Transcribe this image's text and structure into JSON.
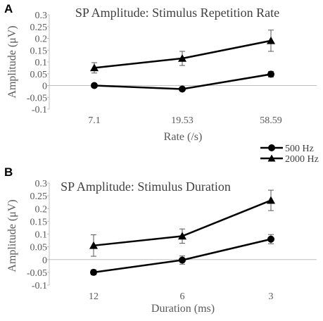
{
  "chart_data": [
    {
      "type": "line",
      "panel": "A",
      "title": "SP Amplitude: Stimulus Repetition Rate",
      "xlabel": "Rate (/s)",
      "ylabel": "Amplitude (μV)",
      "categories": [
        "7.1",
        "19.53",
        "58.59"
      ],
      "ylim": [
        -0.1,
        0.3
      ],
      "yticks": [
        "0.3",
        "0.25",
        "0.2",
        "0.15",
        "0.1",
        "0.05",
        "0",
        "-0.05",
        "-0.1"
      ],
      "series": [
        {
          "name": "500 Hz",
          "marker": "circle",
          "values": [
            0.0,
            -0.015,
            0.048
          ],
          "errors": [
            0.005,
            0.008,
            0.012
          ]
        },
        {
          "name": "2000 Hz",
          "marker": "triangle",
          "values": [
            0.075,
            0.115,
            0.19
          ],
          "errors": [
            0.022,
            0.03,
            0.045
          ]
        }
      ],
      "grid": false,
      "legend": "right"
    },
    {
      "type": "line",
      "panel": "B",
      "title": "SP Amplitude: Stimulus Duration",
      "xlabel": "Duration (ms)",
      "ylabel": "Amplitude (μV)",
      "categories": [
        "12",
        "6",
        "3"
      ],
      "ylim": [
        -0.1,
        0.3
      ],
      "yticks": [
        "0.3",
        "0.25",
        "0.2",
        "0.15",
        "0.1",
        "0.05",
        "0",
        "-0.05",
        "-0.1"
      ],
      "series": [
        {
          "name": "500 Hz",
          "marker": "circle",
          "values": [
            -0.05,
            -0.002,
            0.08
          ],
          "errors": [
            0.01,
            0.016,
            0.018
          ]
        },
        {
          "name": "2000 Hz",
          "marker": "triangle",
          "values": [
            0.055,
            0.092,
            0.232
          ],
          "errors": [
            0.042,
            0.028,
            0.04
          ]
        }
      ],
      "grid": false,
      "legend": "none"
    }
  ],
  "legend": {
    "items": [
      {
        "name": "500 Hz",
        "marker": "circle"
      },
      {
        "name": "2000 Hz",
        "marker": "triangle"
      }
    ]
  },
  "colors": {
    "series": "#000000",
    "axis": "#bfbfbf",
    "text": "#595959",
    "errorbar": "#595959"
  }
}
